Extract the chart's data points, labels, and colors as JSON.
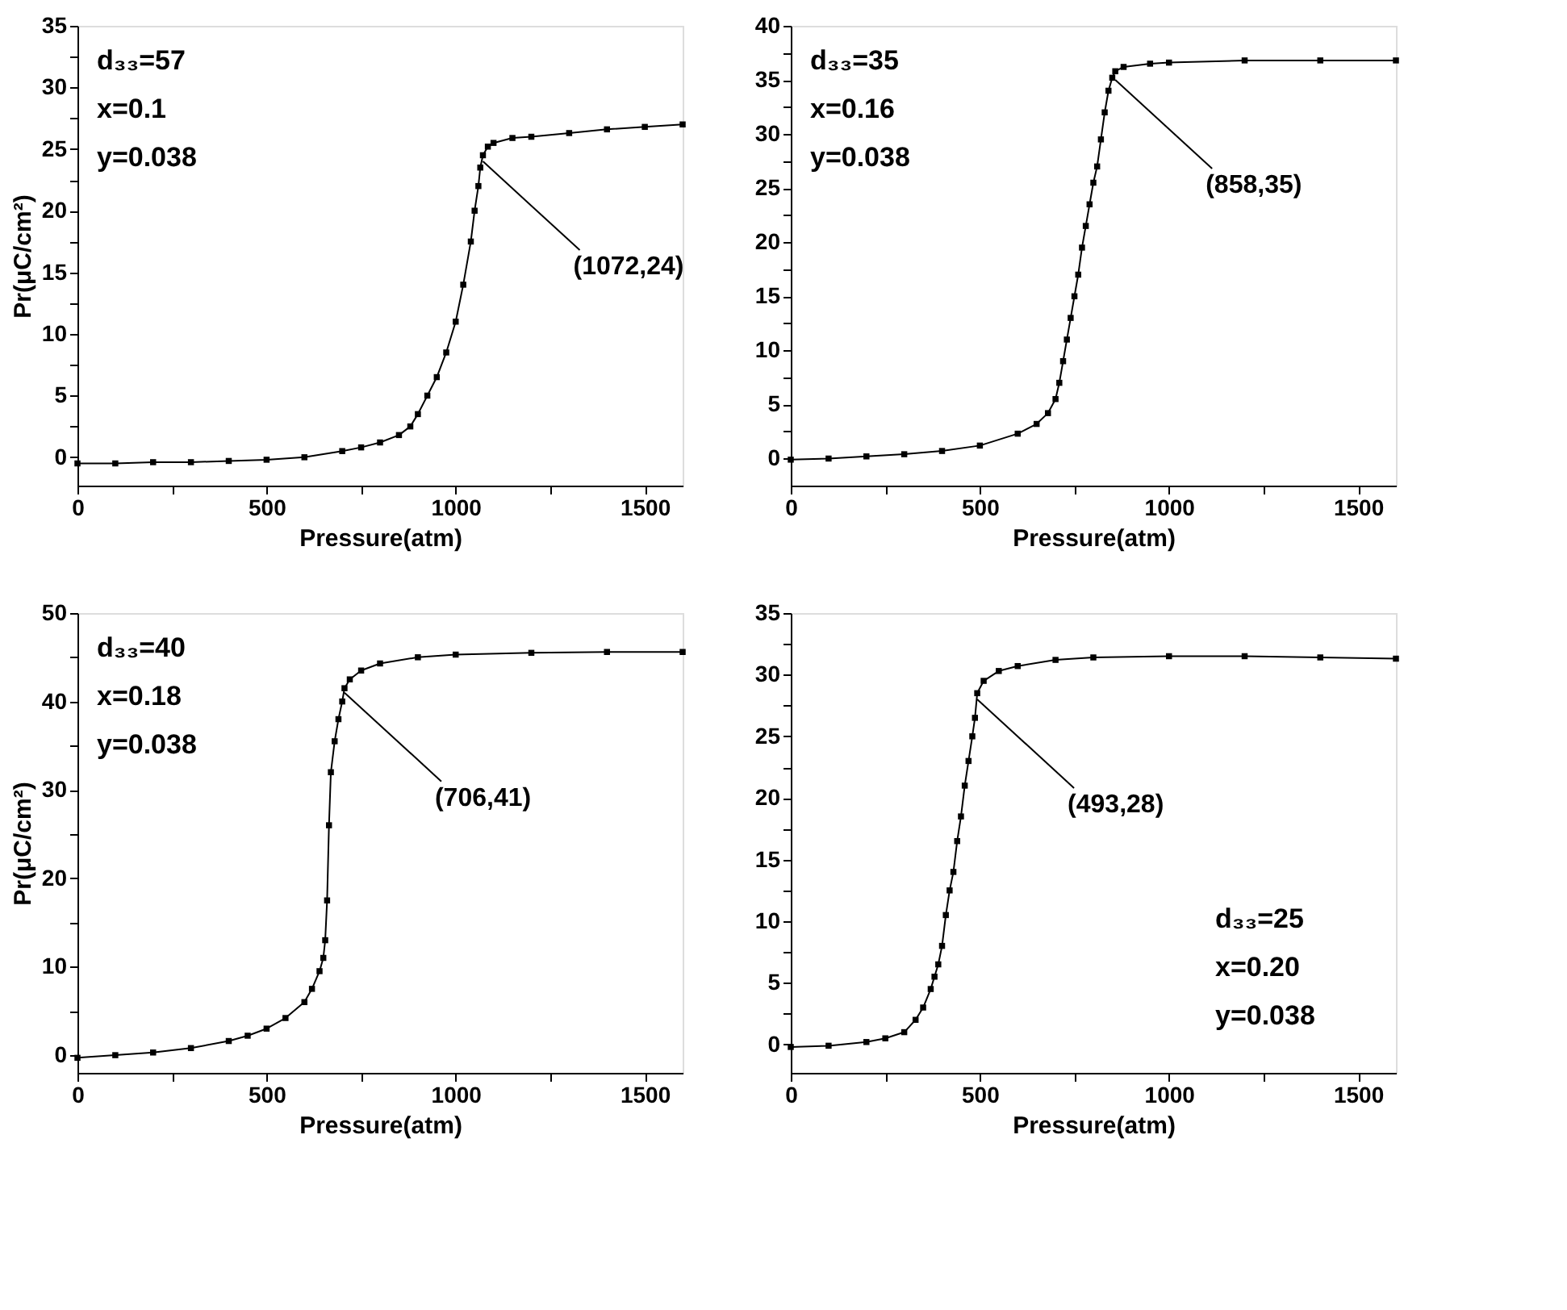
{
  "chart_data": [
    {
      "type": "line",
      "marker": "square",
      "line_style": "solid",
      "grid": false,
      "xlabel": "Pressure(atm)",
      "ylabel": "Pr(μC/cm²)",
      "xlim": [
        0,
        1600
      ],
      "ylim": [
        -2.3,
        35
      ],
      "xticks": [
        0,
        {
          "value": 250,
          "label": null
        },
        500,
        {
          "value": 750,
          "label": null
        },
        1000,
        {
          "value": 1250,
          "label": null
        },
        1500
      ],
      "yticks": [
        0,
        {
          "value": 2.5,
          "label": null
        },
        5,
        {
          "value": 7.5,
          "label": null
        },
        10,
        {
          "value": 12.5,
          "label": null
        },
        15,
        {
          "value": 17.5,
          "label": null
        },
        20,
        {
          "value": 22.5,
          "label": null
        },
        25,
        {
          "value": 27.5,
          "label": null
        },
        30,
        {
          "value": 32.5,
          "label": null
        },
        35
      ],
      "annotations": [
        "d₃₃=57",
        "x=0.1",
        "y=0.038",
        {
          "text": "(1072,24)",
          "x": 1072,
          "y": 24
        }
      ],
      "series": [
        {
          "color": "#000000",
          "x": [
            0,
            100,
            200,
            300,
            400,
            500,
            600,
            700,
            750,
            800,
            850,
            880,
            900,
            925,
            950,
            975,
            1000,
            1020,
            1040,
            1050,
            1060,
            1065,
            1072,
            1085,
            1100,
            1150,
            1200,
            1300,
            1400,
            1500,
            1600
          ],
          "values": [
            -0.5,
            -0.5,
            -0.4,
            -0.4,
            -0.3,
            -0.2,
            0,
            0.5,
            0.8,
            1.2,
            1.8,
            2.5,
            3.5,
            5,
            6.5,
            8.5,
            11,
            14,
            17.5,
            20,
            22,
            23.5,
            24.5,
            25.2,
            25.5,
            25.9,
            26,
            26.3,
            26.6,
            26.8,
            27
          ]
        }
      ]
    },
    {
      "type": "line",
      "marker": "square",
      "line_style": "solid",
      "grid": false,
      "xlabel": "Pressure(atm)",
      "xlim": [
        0,
        1600
      ],
      "ylim": [
        -2.5,
        40
      ],
      "xticks": [
        0,
        {
          "value": 250,
          "label": null
        },
        500,
        {
          "value": 750,
          "label": null
        },
        1000,
        {
          "value": 1250,
          "label": null
        },
        1500
      ],
      "yticks": [
        0,
        {
          "value": 2.5,
          "label": null
        },
        5,
        {
          "value": 7.5,
          "label": null
        },
        10,
        {
          "value": 12.5,
          "label": null
        },
        15,
        {
          "value": 17.5,
          "label": null
        },
        20,
        {
          "value": 22.5,
          "label": null
        },
        25,
        {
          "value": 27.5,
          "label": null
        },
        30,
        {
          "value": 32.5,
          "label": null
        },
        35,
        {
          "value": 37.5,
          "label": null
        },
        40
      ],
      "annotations": [
        "d₃₃=35",
        "x=0.16",
        "y=0.038",
        {
          "text": "(858,35)",
          "x": 858,
          "y": 35
        }
      ],
      "series": [
        {
          "color": "#000000",
          "x": [
            0,
            100,
            200,
            300,
            400,
            500,
            600,
            650,
            680,
            700,
            710,
            720,
            730,
            740,
            750,
            760,
            770,
            780,
            790,
            800,
            810,
            820,
            830,
            840,
            850,
            858,
            880,
            950,
            1000,
            1200,
            1400,
            1600
          ],
          "values": [
            -0.1,
            0,
            0.2,
            0.4,
            0.7,
            1.2,
            2.3,
            3.2,
            4.2,
            5.5,
            7,
            9,
            11,
            13,
            15,
            17,
            19.5,
            21.5,
            23.5,
            25.5,
            27,
            29.5,
            32,
            34,
            35.2,
            35.8,
            36.2,
            36.5,
            36.6,
            36.8,
            36.8,
            36.8
          ]
        }
      ]
    },
    {
      "type": "line",
      "marker": "square",
      "line_style": "solid",
      "grid": false,
      "xlabel": "Pressure(atm)",
      "ylabel": "Pr(μC/cm²)",
      "xlim": [
        0,
        1600
      ],
      "ylim": [
        -2,
        50
      ],
      "xticks": [
        0,
        {
          "value": 250,
          "label": null
        },
        500,
        {
          "value": 750,
          "label": null
        },
        1000,
        {
          "value": 1250,
          "label": null
        },
        1500
      ],
      "yticks": [
        0,
        {
          "value": 5,
          "label": null
        },
        10,
        {
          "value": 15,
          "label": null
        },
        20,
        {
          "value": 25,
          "label": null
        },
        30,
        {
          "value": 35,
          "label": null
        },
        40,
        {
          "value": 45,
          "label": null
        },
        50
      ],
      "annotations": [
        "d₃₃=40",
        "x=0.18",
        "y=0.038",
        {
          "text": "(706,41)",
          "x": 706,
          "y": 41
        }
      ],
      "series": [
        {
          "color": "#000000",
          "x": [
            0,
            100,
            200,
            300,
            400,
            450,
            500,
            550,
            600,
            620,
            640,
            650,
            655,
            660,
            665,
            670,
            680,
            690,
            700,
            706,
            720,
            750,
            800,
            900,
            1000,
            1200,
            1400,
            1600
          ],
          "values": [
            -0.3,
            0,
            0.3,
            0.8,
            1.6,
            2.2,
            3,
            4.2,
            6,
            7.5,
            9.5,
            11,
            13,
            17.5,
            26,
            32,
            35.5,
            38,
            40,
            41.5,
            42.5,
            43.5,
            44.3,
            45,
            45.3,
            45.5,
            45.6,
            45.6
          ]
        }
      ]
    },
    {
      "type": "line",
      "marker": "square",
      "line_style": "solid",
      "grid": false,
      "xlabel": "Pressure(atm)",
      "xlim": [
        0,
        1600
      ],
      "ylim": [
        -2.3,
        35
      ],
      "xticks": [
        0,
        {
          "value": 250,
          "label": null
        },
        500,
        {
          "value": 750,
          "label": null
        },
        1000,
        {
          "value": 1250,
          "label": null
        },
        1500
      ],
      "yticks": [
        0,
        {
          "value": 2.5,
          "label": null
        },
        5,
        {
          "value": 7.5,
          "label": null
        },
        10,
        {
          "value": 12.5,
          "label": null
        },
        15,
        {
          "value": 17.5,
          "label": null
        },
        20,
        {
          "value": 22.5,
          "label": null
        },
        25,
        {
          "value": 27.5,
          "label": null
        },
        30,
        {
          "value": 32.5,
          "label": null
        },
        35
      ],
      "annotations": [
        "d₃₃=25",
        "x=0.20",
        "y=0.038",
        {
          "text": "(493,28)",
          "x": 493,
          "y": 28
        }
      ],
      "series": [
        {
          "color": "#000000",
          "x": [
            0,
            100,
            200,
            250,
            300,
            330,
            350,
            370,
            380,
            390,
            400,
            410,
            420,
            430,
            440,
            450,
            460,
            470,
            480,
            487,
            493,
            510,
            550,
            600,
            700,
            800,
            1000,
            1200,
            1400,
            1600
          ],
          "values": [
            -0.2,
            -0.1,
            0.2,
            0.5,
            1,
            2,
            3,
            4.5,
            5.5,
            6.5,
            8,
            10.5,
            12.5,
            14,
            16.5,
            18.5,
            21,
            23,
            25,
            26.5,
            28.5,
            29.5,
            30.3,
            30.7,
            31.2,
            31.4,
            31.5,
            31.5,
            31.4,
            31.3
          ]
        }
      ]
    }
  ]
}
